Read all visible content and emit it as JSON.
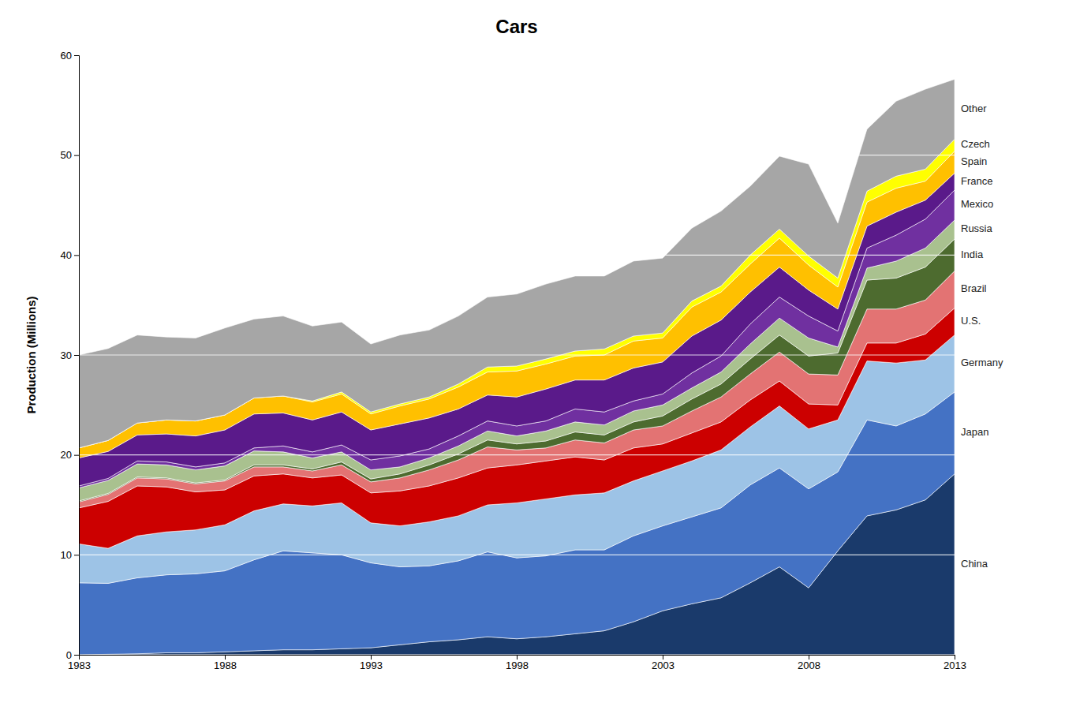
{
  "chart_data": {
    "type": "area",
    "stacked": true,
    "title": "Cars",
    "y_label": "Production (Millions)",
    "x": [
      1983,
      1984,
      1985,
      1986,
      1987,
      1988,
      1989,
      1990,
      1991,
      1992,
      1993,
      1994,
      1995,
      1996,
      1997,
      1998,
      1999,
      2000,
      2001,
      2002,
      2003,
      2004,
      2005,
      2006,
      2007,
      2008,
      2009,
      2010,
      2011,
      2012,
      2013
    ],
    "xlim": [
      1983,
      2013
    ],
    "xticks": [
      1983,
      1988,
      1993,
      1998,
      2003,
      2008,
      2013
    ],
    "ylim": [
      0,
      60
    ],
    "yticks": [
      0,
      10,
      20,
      30,
      40,
      50,
      60
    ],
    "grid": true,
    "series": [
      {
        "name": "China",
        "color": "#1a3a6b",
        "values": [
          0.0,
          0.05,
          0.1,
          0.2,
          0.2,
          0.3,
          0.4,
          0.5,
          0.5,
          0.6,
          0.7,
          1.0,
          1.3,
          1.5,
          1.8,
          1.6,
          1.8,
          2.1,
          2.4,
          3.3,
          4.4,
          5.1,
          5.7,
          7.2,
          8.8,
          6.7,
          10.4,
          13.9,
          14.5,
          15.5,
          18.1
        ]
      },
      {
        "name": "Japan",
        "color": "#4472c4",
        "values": [
          7.2,
          7.1,
          7.6,
          7.8,
          7.9,
          8.1,
          9.1,
          9.9,
          9.7,
          9.4,
          8.5,
          7.8,
          7.6,
          7.9,
          8.5,
          8.1,
          8.1,
          8.4,
          8.1,
          8.6,
          8.5,
          8.7,
          9.0,
          9.8,
          9.9,
          9.9,
          7.9,
          9.6,
          8.4,
          8.6,
          8.2
        ]
      },
      {
        "name": "Germany",
        "color": "#9dc3e6",
        "values": [
          3.9,
          3.5,
          4.2,
          4.3,
          4.4,
          4.6,
          4.9,
          4.7,
          4.7,
          5.2,
          4.0,
          4.1,
          4.4,
          4.5,
          4.7,
          5.5,
          5.7,
          5.5,
          5.7,
          5.5,
          5.5,
          5.6,
          5.8,
          5.8,
          6.2,
          6.0,
          5.2,
          5.9,
          6.3,
          5.4,
          5.7
        ]
      },
      {
        "name": "U.S.",
        "color": "#cc0000",
        "values": [
          3.6,
          4.7,
          5.0,
          4.5,
          3.8,
          3.5,
          3.5,
          3.0,
          2.8,
          2.8,
          3.0,
          3.5,
          3.6,
          3.8,
          3.7,
          3.8,
          3.8,
          3.8,
          3.3,
          3.3,
          2.7,
          2.8,
          2.8,
          2.7,
          2.5,
          2.5,
          1.5,
          1.8,
          2.0,
          2.6,
          2.7
        ]
      },
      {
        "name": "Brazil",
        "color": "#e37373",
        "values": [
          0.6,
          0.7,
          0.8,
          0.8,
          0.8,
          0.9,
          0.9,
          0.7,
          0.7,
          1.0,
          1.1,
          1.3,
          1.6,
          1.8,
          2.1,
          1.5,
          1.3,
          1.7,
          1.7,
          1.8,
          1.8,
          2.2,
          2.5,
          2.6,
          2.9,
          3.0,
          3.0,
          3.4,
          3.4,
          3.4,
          3.7
        ]
      },
      {
        "name": "India",
        "color": "#4d6b2f",
        "values": [
          0.1,
          0.1,
          0.1,
          0.1,
          0.1,
          0.1,
          0.2,
          0.2,
          0.2,
          0.3,
          0.3,
          0.4,
          0.5,
          0.6,
          0.7,
          0.6,
          0.7,
          0.8,
          0.8,
          0.8,
          1.0,
          1.2,
          1.3,
          1.5,
          1.7,
          1.8,
          2.2,
          2.9,
          3.1,
          3.3,
          3.2
        ]
      },
      {
        "name": "Russia",
        "color": "#a9c18f",
        "values": [
          1.3,
          1.3,
          1.3,
          1.3,
          1.3,
          1.4,
          1.4,
          1.3,
          1.1,
          1.0,
          0.9,
          0.7,
          0.7,
          0.8,
          0.9,
          0.8,
          1.0,
          1.0,
          1.0,
          1.1,
          1.1,
          1.1,
          1.2,
          1.5,
          1.7,
          1.8,
          0.6,
          1.2,
          1.7,
          1.9,
          1.9
        ]
      },
      {
        "name": "Mexico",
        "color": "#7030a0",
        "values": [
          0.2,
          0.2,
          0.3,
          0.3,
          0.3,
          0.3,
          0.3,
          0.6,
          0.6,
          0.7,
          1.0,
          1.1,
          0.9,
          1.0,
          1.0,
          1.0,
          1.0,
          1.3,
          1.3,
          1.0,
          1.1,
          1.5,
          1.6,
          2.0,
          2.1,
          2.2,
          1.6,
          2.0,
          2.6,
          2.9,
          3.0
        ]
      },
      {
        "name": "France",
        "color": "#5a1a8a",
        "values": [
          2.8,
          2.7,
          2.6,
          2.8,
          3.1,
          3.3,
          3.4,
          3.3,
          3.2,
          3.3,
          3.0,
          3.2,
          3.1,
          2.7,
          2.6,
          2.9,
          3.2,
          2.9,
          3.2,
          3.3,
          3.2,
          3.7,
          3.6,
          3.2,
          3.0,
          2.6,
          2.2,
          2.2,
          2.3,
          1.9,
          1.7
        ]
      },
      {
        "name": "Spain",
        "color": "#ffc000",
        "values": [
          1.0,
          1.1,
          1.2,
          1.4,
          1.5,
          1.5,
          1.6,
          1.7,
          1.8,
          1.8,
          1.6,
          1.8,
          1.9,
          2.2,
          2.3,
          2.6,
          2.5,
          2.4,
          2.5,
          2.7,
          2.4,
          2.9,
          2.8,
          2.8,
          2.9,
          2.5,
          2.2,
          2.4,
          2.4,
          1.9,
          2.2
        ]
      },
      {
        "name": "Czech",
        "color": "#ffff00",
        "values": [
          0.0,
          0.0,
          0.0,
          0.0,
          0.0,
          0.0,
          0.0,
          0.0,
          0.1,
          0.2,
          0.2,
          0.2,
          0.2,
          0.3,
          0.5,
          0.5,
          0.5,
          0.5,
          0.6,
          0.5,
          0.5,
          0.6,
          0.6,
          0.9,
          0.9,
          0.9,
          0.9,
          1.1,
          1.2,
          1.2,
          1.2
        ]
      },
      {
        "name": "Other",
        "color": "#a6a6a6",
        "values": [
          9.3,
          9.2,
          8.8,
          8.3,
          8.3,
          8.7,
          7.9,
          8.0,
          7.5,
          7.0,
          6.8,
          6.9,
          6.7,
          6.8,
          7.0,
          7.2,
          7.5,
          7.5,
          7.3,
          7.5,
          7.5,
          7.3,
          7.5,
          6.9,
          7.3,
          9.2,
          5.5,
          6.2,
          7.5,
          8.0,
          6.0
        ]
      }
    ]
  }
}
